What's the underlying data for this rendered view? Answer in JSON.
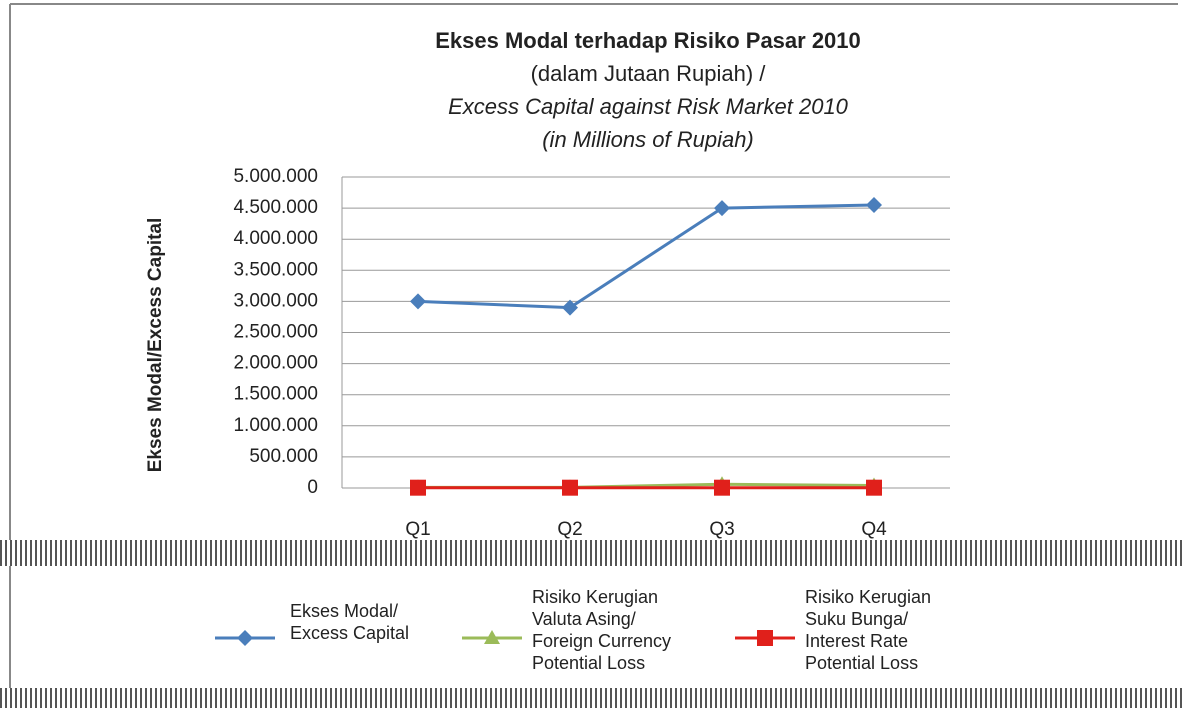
{
  "chart_data": {
    "type": "line",
    "title": [
      "Ekses Modal terhadap Risiko Pasar 2010",
      "(dalam Jutaan Rupiah) /",
      "Excess Capital against Risk Market 2010",
      "(in Millions of Rupiah)"
    ],
    "y_label": "Ekses Modal/Excess Capital",
    "categories": [
      "Q1",
      "Q2",
      "Q3",
      "Q4"
    ],
    "series": [
      {
        "name": "Ekses Modal/\nExcess Capital",
        "color": "#4a7ebb",
        "marker": "diamond",
        "values": [
          3000000,
          2900000,
          4500000,
          4550000
        ]
      },
      {
        "name": "Risiko Kerugian\nValuta Asing/\nForeign Currency\nPotential Loss",
        "color": "#9bbb59",
        "marker": "triangle",
        "values": [
          10000,
          10000,
          60000,
          40000
        ]
      },
      {
        "name": "Risiko Kerugian\nSuku Bunga/\nInterest Rate\nPotential Loss",
        "color": "#e0201b",
        "marker": "square",
        "values": [
          5000,
          5000,
          5000,
          5000
        ]
      }
    ],
    "ylim": [
      0,
      5000000
    ],
    "yticks": [
      0,
      {
        "value": 500000,
        "label": "500.000"
      },
      {
        "value": 1000000,
        "label": "1.000.000"
      },
      {
        "value": 1500000,
        "label": "1.500.000"
      },
      {
        "value": 2000000,
        "label": "2.000.000"
      },
      {
        "value": 2500000,
        "label": "2.500.000"
      },
      {
        "value": 3000000,
        "label": "3.000.000"
      },
      {
        "value": 3500000,
        "label": "3.500.000"
      },
      {
        "value": 4000000,
        "label": "4.000.000"
      },
      {
        "value": 4500000,
        "label": "4.500.000"
      },
      {
        "value": 5000000,
        "label": "5.000.000"
      }
    ],
    "grid": true
  }
}
